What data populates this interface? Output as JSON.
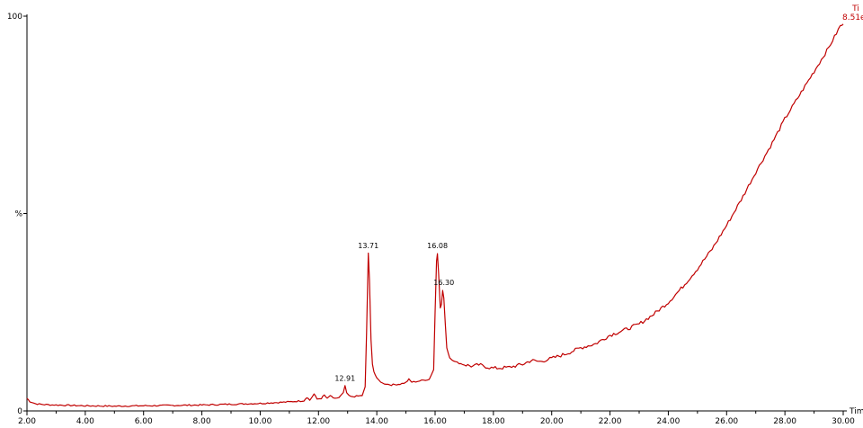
{
  "chart_data": {
    "type": "line",
    "title": "",
    "xlabel": "Tim",
    "ylabel": "%",
    "xlim": [
      2.0,
      30.0
    ],
    "ylim": [
      0,
      100
    ],
    "grid": false,
    "legend": "none",
    "line_color": "#c00000",
    "x_ticks": [
      "2.00",
      "4.00",
      "6.00",
      "8.00",
      "10.00",
      "12.00",
      "14.00",
      "16.00",
      "18.00",
      "20.00",
      "22.00",
      "24.00",
      "26.00",
      "28.00",
      "30.00"
    ],
    "y_ticks": [
      "0",
      "%",
      "100"
    ],
    "top_right_label": {
      "line1": "Ti",
      "line2": "8.51e"
    },
    "peak_labels": [
      {
        "label": "12.91",
        "x": 12.91,
        "y": 6.9
      },
      {
        "label": "13.71",
        "x": 13.71,
        "y": 40.5
      },
      {
        "label": "16.08",
        "x": 16.08,
        "y": 40.5
      },
      {
        "label": "16.30",
        "x": 16.3,
        "y": 31.2
      }
    ],
    "series": [
      {
        "values_xy": [
          [
            2.0,
            3.2
          ],
          [
            2.1,
            2.4
          ],
          [
            2.3,
            1.8
          ],
          [
            2.6,
            1.6
          ],
          [
            3.0,
            1.5
          ],
          [
            4.0,
            1.3
          ],
          [
            5.0,
            1.2
          ],
          [
            6.0,
            1.3
          ],
          [
            7.0,
            1.4
          ],
          [
            8.0,
            1.5
          ],
          [
            9.0,
            1.7
          ],
          [
            10.0,
            1.9
          ],
          [
            11.0,
            2.3
          ],
          [
            11.5,
            2.6
          ],
          [
            11.6,
            3.5
          ],
          [
            11.7,
            2.7
          ],
          [
            11.85,
            4.3
          ],
          [
            11.95,
            3.0
          ],
          [
            12.1,
            3.2
          ],
          [
            12.2,
            4.0
          ],
          [
            12.3,
            3.1
          ],
          [
            12.4,
            3.9
          ],
          [
            12.5,
            3.2
          ],
          [
            12.7,
            3.3
          ],
          [
            12.85,
            4.5
          ],
          [
            12.91,
            6.4
          ],
          [
            12.97,
            4.4
          ],
          [
            13.1,
            3.6
          ],
          [
            13.3,
            3.7
          ],
          [
            13.5,
            3.9
          ],
          [
            13.6,
            6.0
          ],
          [
            13.65,
            20.0
          ],
          [
            13.71,
            40.0
          ],
          [
            13.75,
            33.0
          ],
          [
            13.8,
            18.0
          ],
          [
            13.85,
            12.0
          ],
          [
            13.9,
            10.0
          ],
          [
            14.0,
            8.2
          ],
          [
            14.2,
            7.0
          ],
          [
            14.5,
            6.6
          ],
          [
            14.8,
            6.8
          ],
          [
            15.0,
            7.2
          ],
          [
            15.1,
            8.0
          ],
          [
            15.2,
            7.3
          ],
          [
            15.4,
            7.5
          ],
          [
            15.6,
            7.8
          ],
          [
            15.8,
            8.0
          ],
          [
            15.95,
            10.5
          ],
          [
            16.0,
            25.0
          ],
          [
            16.05,
            38.0
          ],
          [
            16.08,
            40.0
          ],
          [
            16.12,
            35.0
          ],
          [
            16.18,
            26.0
          ],
          [
            16.22,
            27.0
          ],
          [
            16.26,
            30.5
          ],
          [
            16.3,
            28.5
          ],
          [
            16.35,
            22.0
          ],
          [
            16.4,
            16.0
          ],
          [
            16.5,
            13.5
          ],
          [
            16.7,
            12.4
          ],
          [
            17.0,
            11.7
          ],
          [
            17.3,
            11.3
          ],
          [
            17.5,
            11.7
          ],
          [
            17.8,
            11.1
          ],
          [
            18.0,
            10.8
          ],
          [
            18.5,
            11.0
          ],
          [
            19.0,
            11.8
          ],
          [
            19.3,
            12.8
          ],
          [
            19.6,
            12.5
          ],
          [
            20.0,
            13.3
          ],
          [
            20.5,
            14.5
          ],
          [
            21.0,
            16.0
          ],
          [
            21.5,
            17.0
          ],
          [
            22.0,
            19.2
          ],
          [
            22.5,
            20.5
          ],
          [
            23.0,
            22.0
          ],
          [
            23.5,
            24.5
          ],
          [
            24.0,
            27.5
          ],
          [
            24.5,
            31.5
          ],
          [
            25.0,
            36.0
          ],
          [
            25.5,
            41.0
          ],
          [
            26.0,
            47.0
          ],
          [
            26.5,
            53.5
          ],
          [
            27.0,
            60.5
          ],
          [
            27.5,
            67.0
          ],
          [
            28.0,
            74.0
          ],
          [
            28.5,
            80.0
          ],
          [
            29.0,
            86.0
          ],
          [
            29.5,
            92.0
          ],
          [
            29.9,
            97.5
          ],
          [
            30.0,
            98.0
          ]
        ]
      }
    ]
  }
}
